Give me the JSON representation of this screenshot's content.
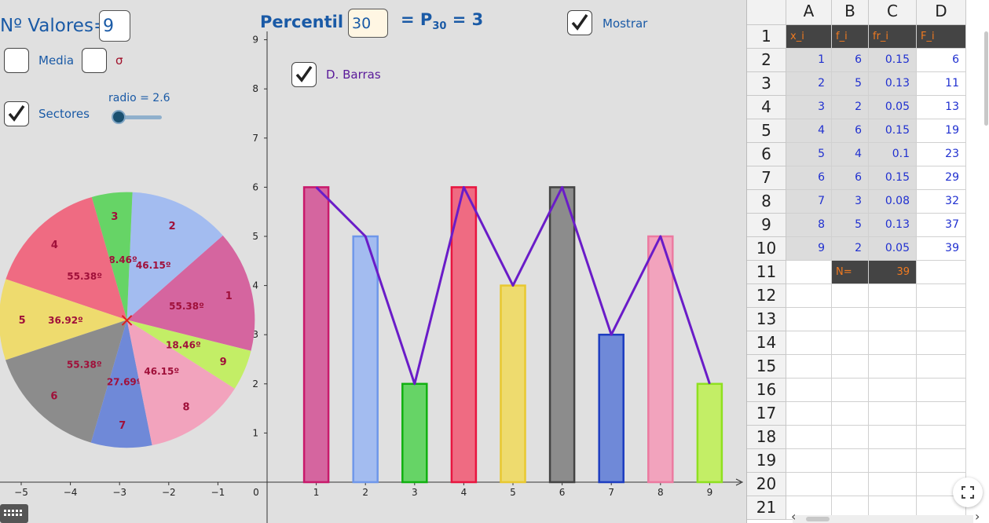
{
  "controls": {
    "n_values_label": "Nº Valores=",
    "n_values": "9",
    "percentil_label": "Percentil",
    "percentil_value": "30",
    "percentil_eq": "= P",
    "percentil_sub": "30",
    "percentil_result": " = 3",
    "mostrar_label": "Mostrar",
    "mostrar_checked": true,
    "media_label": "Media",
    "media_checked": false,
    "sigma_label": "σ",
    "sigma_checked": false,
    "barras_label": "D. Barras",
    "barras_checked": true,
    "sectores_label": "Sectores",
    "sectores_checked": true,
    "radio_label": "radio = 2.6",
    "radio_value": 2.6
  },
  "chart_data": {
    "type": "bar",
    "categories": [
      "1",
      "2",
      "3",
      "4",
      "5",
      "6",
      "7",
      "8",
      "9"
    ],
    "values": [
      6,
      5,
      2,
      6,
      4,
      6,
      3,
      5,
      2
    ],
    "colors": [
      "#d5659f",
      "#a3bcf0",
      "#66d466",
      "#ef6b82",
      "#eedb6e",
      "#8c8c8c",
      "#6f89d8",
      "#f2a3bd",
      "#c3ee66"
    ],
    "strokes": [
      "#c8196b",
      "#6f97ea",
      "#10b010",
      "#e8153f",
      "#e8c830",
      "#444444",
      "#1d3dc0",
      "#ec7aa0",
      "#8fe020"
    ],
    "polygon_color": "#6a1cc8",
    "x_ticks": [
      "−5",
      "−4",
      "−3",
      "−2",
      "−1",
      "0",
      "1",
      "2",
      "3",
      "4",
      "5",
      "6",
      "7",
      "8",
      "9"
    ],
    "y_ticks": [
      "1",
      "2",
      "3",
      "4",
      "5",
      "6",
      "7",
      "8",
      "9"
    ],
    "ylim": [
      0,
      9
    ],
    "pie": {
      "center_marker": "×",
      "sectors": [
        {
          "label": "1",
          "angle": 55.38,
          "angle_label": "55.38º"
        },
        {
          "label": "2",
          "angle": 46.15,
          "angle_label": "46.15º"
        },
        {
          "label": "3",
          "angle": 18.46,
          "angle_label": "18.46º"
        },
        {
          "label": "4",
          "angle": 55.38,
          "angle_label": "55.38º"
        },
        {
          "label": "5",
          "angle": 36.92,
          "angle_label": "36.92º"
        },
        {
          "label": "6",
          "angle": 55.38,
          "angle_label": "55.38º"
        },
        {
          "label": "7",
          "angle": 27.69,
          "angle_label": "27.69º"
        },
        {
          "label": "8",
          "angle": 46.15,
          "angle_label": "46.15º"
        },
        {
          "label": "9",
          "angle": 18.46,
          "angle_label": "18.46º"
        }
      ]
    }
  },
  "spreadsheet": {
    "columns": [
      "A",
      "B",
      "C",
      "D"
    ],
    "rows": [
      "1",
      "2",
      "3",
      "4",
      "5",
      "6",
      "7",
      "8",
      "9",
      "10",
      "11",
      "12",
      "13",
      "14",
      "15",
      "16",
      "17",
      "18",
      "19",
      "20",
      "21"
    ],
    "headers": [
      "x_i",
      "f_i",
      "fr_i",
      "F_i"
    ],
    "data": [
      [
        "1",
        "6",
        "0.15",
        "6"
      ],
      [
        "2",
        "5",
        "0.13",
        "11"
      ],
      [
        "3",
        "2",
        "0.05",
        "13"
      ],
      [
        "4",
        "6",
        "0.15",
        "19"
      ],
      [
        "5",
        "4",
        "0.1",
        "23"
      ],
      [
        "6",
        "6",
        "0.15",
        "29"
      ],
      [
        "7",
        "3",
        "0.08",
        "32"
      ],
      [
        "8",
        "5",
        "0.13",
        "37"
      ],
      [
        "9",
        "2",
        "0.05",
        "39"
      ]
    ],
    "total_label": "N=",
    "total_value": "39"
  },
  "icons": [
    "check-icon",
    "keyboard-icon",
    "fullscreen-icon",
    "scroll-left-icon",
    "scroll-right-icon"
  ]
}
